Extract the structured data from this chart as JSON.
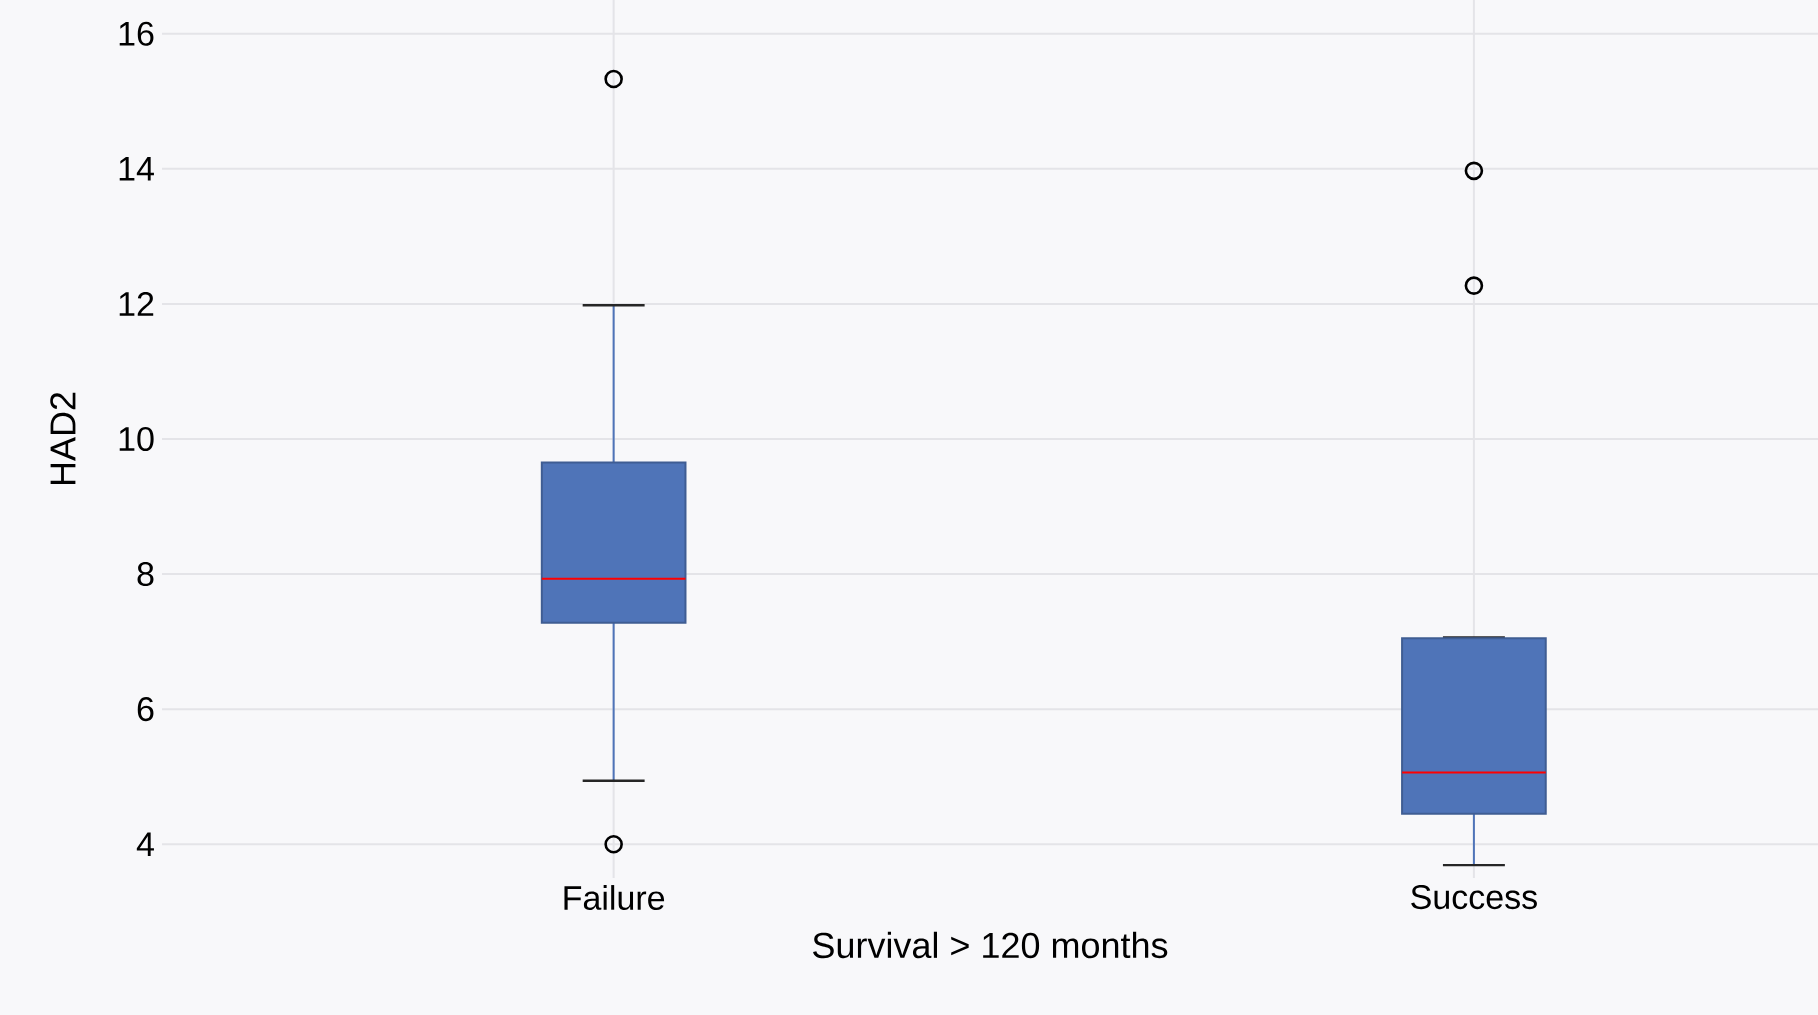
{
  "chart_data": {
    "type": "box",
    "categories": [
      "Failure",
      "Success"
    ],
    "xlabel": "Survival > 120 months",
    "ylabel": "HAD2",
    "color": "#4f74b8",
    "boxes": [
      {
        "low": 4.94,
        "q1": 7.28,
        "median": 7.93,
        "q3": 9.65,
        "high": 11.98,
        "outliers": [
          15.33,
          4.0
        ]
      },
      {
        "low": 3.69,
        "q1": 4.45,
        "median": 5.06,
        "q3": 7.05,
        "high": 7.06,
        "outliers": [
          13.97,
          12.27
        ]
      }
    ],
    "ylim": [
      3.5,
      16.5
    ],
    "yticks": [
      4,
      6,
      8,
      10,
      12,
      14,
      16
    ],
    "grid": true
  }
}
